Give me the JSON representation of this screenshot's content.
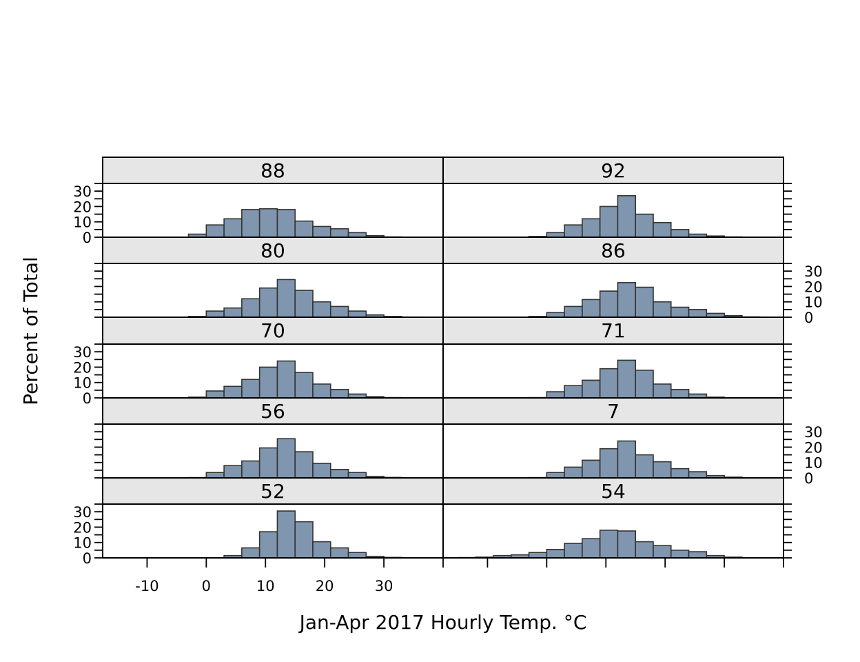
{
  "chart_data": {
    "type": "bar",
    "subtype": "histogram-trellis",
    "layout": {
      "columns": 2,
      "rows": 5,
      "order": "bottom-to-top"
    },
    "xlabel": "Jan-Apr 2017 Hourly Temp. °C",
    "ylabel": "Percent of Total",
    "xlim": [
      -17.5,
      40
    ],
    "ylim": [
      0,
      35
    ],
    "x_ticks": [
      -10,
      0,
      10,
      20,
      30
    ],
    "x_tick_labels": [
      "-10",
      "0",
      "10",
      "20",
      "30"
    ],
    "y_ticks": [
      0,
      10,
      20,
      30
    ],
    "y_tick_labels": [
      "0",
      "10",
      "20",
      "30"
    ],
    "bin_edges": [
      -15,
      -12,
      -9,
      -6,
      -3,
      0,
      3,
      6,
      9,
      12,
      15,
      18,
      21,
      24,
      27,
      30,
      33,
      36
    ],
    "bar_color": "#7f96ae",
    "bar_outline": "#333333",
    "strip_color": "#e6e6e6",
    "panels": [
      {
        "label": "52",
        "values": [
          0,
          0,
          0,
          0,
          0,
          0,
          1.5,
          6.5,
          17,
          30.5,
          23.5,
          10.5,
          6.5,
          3.5,
          1,
          0.3,
          0,
          0
        ]
      },
      {
        "label": "54",
        "values": [
          0.2,
          0.5,
          1.5,
          2,
          3.5,
          5.5,
          9.5,
          12.5,
          18,
          17.5,
          10.5,
          8,
          5,
          4,
          1.5,
          0.5,
          0.1,
          0
        ]
      },
      {
        "label": "56",
        "values": [
          0,
          0,
          0,
          0,
          0.2,
          3.5,
          8,
          11,
          19.5,
          25.5,
          17,
          9.5,
          5.5,
          3.5,
          1,
          0.3,
          0,
          0
        ]
      },
      {
        "label": "7",
        "values": [
          0,
          0,
          0,
          0,
          0.2,
          3.5,
          7,
          11.5,
          19,
          24,
          15,
          10.5,
          6,
          4,
          1.5,
          0.5,
          0.1,
          0
        ]
      },
      {
        "label": "70",
        "values": [
          0,
          0,
          0,
          0,
          0.5,
          4.5,
          7.5,
          12,
          20,
          24,
          16.5,
          9,
          5.5,
          2.5,
          0.8,
          0.2,
          0,
          0
        ]
      },
      {
        "label": "71",
        "values": [
          0,
          0,
          0,
          0,
          0.2,
          4,
          8,
          11.5,
          19,
          24.5,
          18,
          9,
          5.5,
          2.5,
          0.5,
          0.1,
          0,
          0
        ]
      },
      {
        "label": "80",
        "values": [
          0,
          0,
          0,
          0,
          0.5,
          4,
          6,
          12,
          19,
          24.5,
          17.5,
          10,
          7,
          4,
          1.5,
          0.5,
          0.1,
          0
        ]
      },
      {
        "label": "86",
        "values": [
          0,
          0,
          0,
          0,
          0.5,
          3,
          7,
          11.5,
          17,
          22.5,
          19.5,
          10,
          6.5,
          5,
          2.5,
          1,
          0.2,
          0
        ]
      },
      {
        "label": "88",
        "values": [
          0,
          0,
          0,
          0,
          2,
          8,
          12,
          18,
          18.5,
          18,
          10.5,
          7,
          5.5,
          3,
          1,
          0.2,
          0,
          0
        ]
      },
      {
        "label": "92",
        "values": [
          0,
          0,
          0,
          0,
          0.5,
          3,
          8,
          12,
          20,
          27,
          15,
          9.5,
          5,
          2,
          0.8,
          0.2,
          0,
          0
        ]
      }
    ]
  }
}
